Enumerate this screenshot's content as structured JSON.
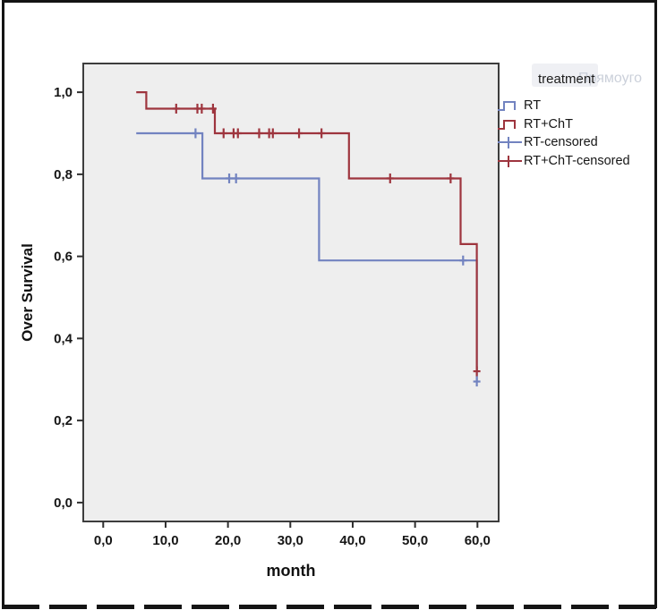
{
  "figure": {
    "watermark_text": "Прямоуго"
  },
  "chart_data": {
    "type": "line",
    "subtype": "kaplan-meier-step-function",
    "title": "",
    "xlabel": "month",
    "ylabel": "Over Survival",
    "legend_title": "treatment",
    "legend_position": "right-top",
    "grid": false,
    "background": "#eeeeee",
    "frame_color": "#3d3d3d",
    "tick_color": "#2f2f2f",
    "text_color": "#161616",
    "decimal_separator": ",",
    "xlim": [
      -3.2,
      63.4
    ],
    "ylim": [
      -0.046,
      1.07
    ],
    "xticks": [
      0,
      10,
      20,
      30,
      40,
      50,
      60
    ],
    "yticks": [
      0.0,
      0.2,
      0.4,
      0.6,
      0.8,
      1.0
    ],
    "series": [
      {
        "name": "RT",
        "color": "#7283c0",
        "steps": [
          [
            5.3,
            0.9
          ],
          [
            15.9,
            0.9
          ],
          [
            15.9,
            0.79
          ],
          [
            34.6,
            0.79
          ],
          [
            34.6,
            0.59
          ],
          [
            59.9,
            0.59
          ],
          [
            59.9,
            0.295
          ]
        ],
        "censored": [
          [
            14.8,
            0.9
          ],
          [
            20.2,
            0.79
          ],
          [
            21.3,
            0.79
          ],
          [
            57.7,
            0.59
          ],
          [
            59.9,
            0.295
          ]
        ]
      },
      {
        "name": "RT+ChT",
        "color": "#9e353e",
        "steps": [
          [
            5.3,
            1.0
          ],
          [
            6.9,
            1.0
          ],
          [
            6.9,
            0.96
          ],
          [
            17.9,
            0.96
          ],
          [
            17.9,
            0.9
          ],
          [
            39.4,
            0.9
          ],
          [
            39.4,
            0.79
          ],
          [
            57.3,
            0.79
          ],
          [
            57.3,
            0.63
          ],
          [
            59.9,
            0.63
          ],
          [
            59.9,
            0.32
          ]
        ],
        "censored": [
          [
            11.7,
            0.96
          ],
          [
            15.1,
            0.96
          ],
          [
            15.8,
            0.96
          ],
          [
            17.6,
            0.96
          ],
          [
            19.3,
            0.9
          ],
          [
            20.9,
            0.9
          ],
          [
            21.6,
            0.9
          ],
          [
            25.0,
            0.9
          ],
          [
            26.6,
            0.9
          ],
          [
            27.2,
            0.9
          ],
          [
            31.4,
            0.9
          ],
          [
            35.0,
            0.9
          ],
          [
            46.0,
            0.79
          ],
          [
            55.7,
            0.79
          ],
          [
            59.9,
            0.32
          ]
        ]
      }
    ],
    "legend": [
      {
        "label": "RT",
        "color": "#7283c0",
        "glyph": "step"
      },
      {
        "label": "RT+ChT",
        "color": "#9e353e",
        "glyph": "step"
      },
      {
        "label": "RT-censored",
        "color": "#7283c0",
        "glyph": "censor"
      },
      {
        "label": "RT+ChT-censored",
        "color": "#9e353e",
        "glyph": "censor"
      }
    ]
  }
}
